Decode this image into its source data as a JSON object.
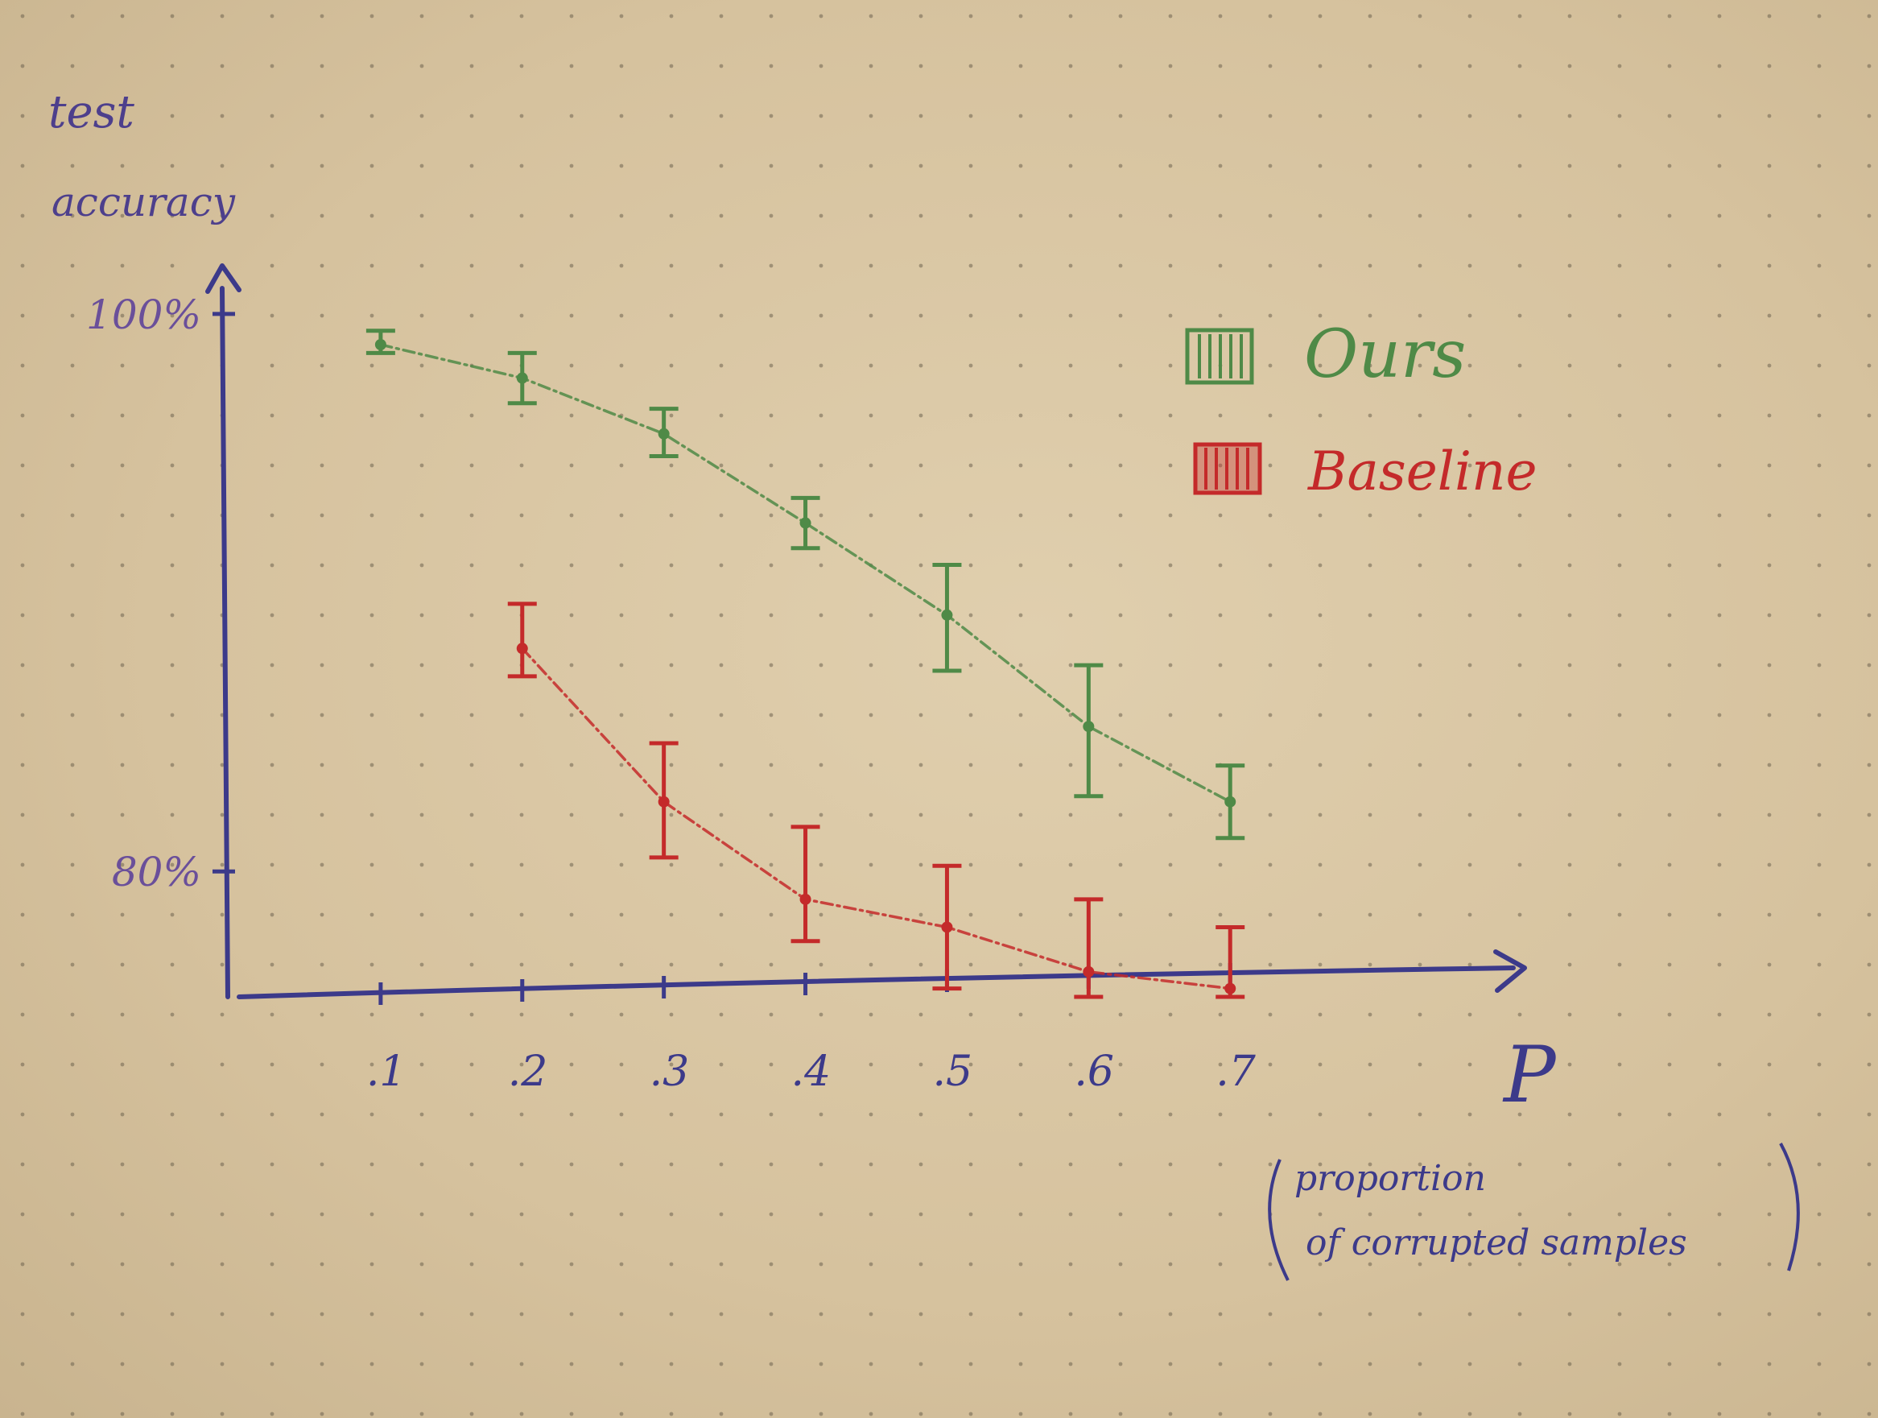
{
  "chart_data": {
    "type": "line",
    "ylabel_line1": "test",
    "ylabel_line2": "accuracy",
    "xlabel": "P",
    "xlabel_note_line1": "proportion",
    "xlabel_note_line2": "of corrupted samples",
    "y_ticks": [
      {
        "value": 100,
        "label": "100%"
      },
      {
        "value": 80,
        "label": "80%"
      }
    ],
    "x_ticks": [
      {
        "value": 0.1,
        "label": ".1"
      },
      {
        "value": 0.2,
        "label": ".2"
      },
      {
        "value": 0.3,
        "label": ".3"
      },
      {
        "value": 0.4,
        "label": ".4"
      },
      {
        "value": 0.5,
        "label": ".5"
      },
      {
        "value": 0.6,
        "label": ".6"
      },
      {
        "value": 0.7,
        "label": ".7"
      }
    ],
    "xlim": [
      0,
      0.9
    ],
    "ylim": [
      75.5,
      101.5
    ],
    "grid": false,
    "legend_position": "top-right",
    "series": [
      {
        "name": "Ours",
        "color": "#4f8a47",
        "x": [
          0.1,
          0.2,
          0.3,
          0.4,
          0.5,
          0.6,
          0.7
        ],
        "y": [
          98.9,
          97.7,
          95.7,
          92.5,
          89.2,
          85.2,
          82.5
        ],
        "err_low": [
          98.6,
          96.8,
          94.9,
          91.6,
          87.2,
          82.7,
          81.2
        ],
        "err_high": [
          99.4,
          98.6,
          96.6,
          93.4,
          91.0,
          87.4,
          83.8
        ]
      },
      {
        "name": "Baseline",
        "color": "#c42a2a",
        "x": [
          0.2,
          0.3,
          0.4,
          0.5,
          0.6,
          0.7
        ],
        "y": [
          88.0,
          82.5,
          79.0,
          78.0,
          76.4,
          75.8
        ],
        "err_low": [
          87.0,
          80.5,
          77.5,
          75.8,
          75.5,
          75.5
        ],
        "err_high": [
          89.6,
          84.6,
          81.6,
          80.2,
          79.0,
          78.0
        ]
      }
    ]
  }
}
